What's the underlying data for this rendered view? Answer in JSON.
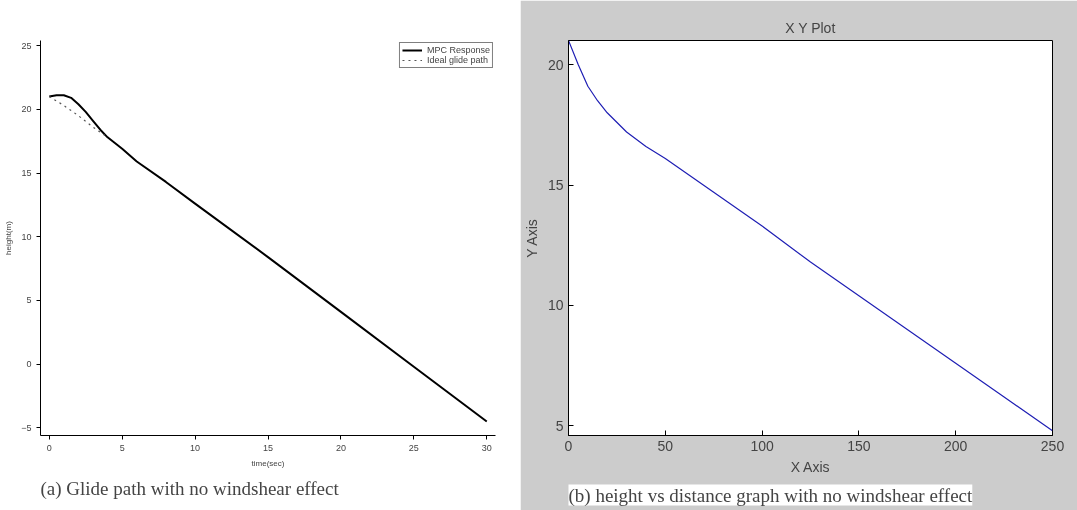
{
  "chart_data": [
    {
      "type": "line",
      "xlabel": "time(sec)",
      "ylabel": "height(m)",
      "xlim": [
        -0.6,
        30.6
      ],
      "ylim": [
        -5.6,
        25.4
      ],
      "xticks": [
        0,
        5,
        10,
        15,
        20,
        25,
        30
      ],
      "yticks": [
        -5,
        0,
        5,
        10,
        15,
        20,
        25
      ],
      "grid": false,
      "legend": "top right",
      "series": [
        {
          "name": "MPC Response",
          "color": "#000000",
          "line_style": "solid",
          "x": [
            0,
            0.5,
            1,
            1.5,
            2,
            2.5,
            3,
            3.5,
            4,
            5,
            6,
            8,
            10,
            15,
            20,
            25,
            30
          ],
          "values": [
            21,
            21.1,
            21.1,
            20.9,
            20.4,
            19.8,
            19.1,
            18.4,
            17.8,
            16.9,
            15.9,
            14.3,
            12.6,
            8.4,
            4.1,
            -0.2,
            -4.5
          ]
        },
        {
          "name": "Ideal glide path",
          "color": "#555555",
          "line_style": "dotted",
          "x": [
            0,
            1,
            2,
            3,
            4
          ],
          "values": [
            21,
            20.3,
            19.5,
            18.6,
            17.8
          ]
        }
      ],
      "annotations": [
        "(a) Glide path with no windshear effect"
      ]
    },
    {
      "type": "line",
      "title": "X Y Plot",
      "xlabel": "X Axis",
      "ylabel": "Y Axis",
      "xlim": [
        0,
        250
      ],
      "ylim": [
        4.6,
        21
      ],
      "xticks": [
        0,
        50,
        100,
        150,
        200,
        250
      ],
      "yticks": [
        5,
        10,
        15,
        20
      ],
      "grid": false,
      "legend": false,
      "series": [
        {
          "color": "#1f1fb4",
          "line_style": "solid",
          "x": [
            0,
            5,
            10,
            15,
            20,
            30,
            40,
            50,
            75,
            100,
            125,
            150,
            175,
            200,
            225,
            250
          ],
          "values": [
            21,
            20.0,
            19.1,
            18.5,
            18.0,
            17.2,
            16.6,
            16.1,
            14.7,
            13.3,
            11.8,
            10.4,
            9.0,
            7.6,
            6.2,
            4.8
          ]
        }
      ],
      "annotations": [
        "(b) height vs distance graph with no windshear effect"
      ]
    }
  ]
}
